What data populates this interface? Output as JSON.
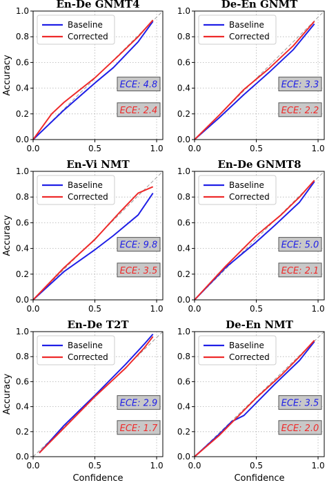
{
  "figure": {
    "xlabel": "Confidence",
    "ylabel": "Accuracy",
    "xticks": [
      "0.0",
      "0.5",
      "1.0"
    ],
    "yticks": [
      "0.0",
      "0.2",
      "0.4",
      "0.6",
      "0.8",
      "1.0"
    ]
  },
  "colors": {
    "baseline": "#1f1fe6",
    "corrected": "#ee2a2a",
    "diagonal": "#999999",
    "ece_box": "#c8c8c8"
  },
  "chart_data": [
    {
      "type": "line",
      "title": "En-De GNMT4",
      "xlabel": "",
      "ylabel": "Accuracy",
      "xlim": [
        0,
        1.05
      ],
      "ylim": [
        0,
        1.0
      ],
      "grid": true,
      "legend_position": "top-left",
      "series": [
        {
          "name": "Baseline",
          "x": [
            0.0,
            0.25,
            0.5,
            0.65,
            0.85,
            0.97
          ],
          "y": [
            0.0,
            0.23,
            0.44,
            0.56,
            0.76,
            0.92
          ]
        },
        {
          "name": "Corrected",
          "x": [
            0.0,
            0.15,
            0.25,
            0.5,
            0.7,
            0.85,
            0.97
          ],
          "y": [
            0.0,
            0.2,
            0.29,
            0.48,
            0.66,
            0.8,
            0.93
          ]
        }
      ],
      "ece": [
        {
          "label": "ECE: 4.8",
          "series": "Baseline"
        },
        {
          "label": "ECE: 2.4",
          "series": "Corrected"
        }
      ]
    },
    {
      "type": "line",
      "title": "De-En GNMT",
      "xlabel": "",
      "ylabel": "",
      "xlim": [
        0,
        1.05
      ],
      "ylim": [
        0,
        1.0
      ],
      "grid": true,
      "legend_position": "top-left",
      "series": [
        {
          "name": "Baseline",
          "x": [
            0.0,
            0.2,
            0.4,
            0.6,
            0.8,
            0.97
          ],
          "y": [
            0.0,
            0.17,
            0.35,
            0.52,
            0.7,
            0.9
          ]
        },
        {
          "name": "Corrected",
          "x": [
            0.0,
            0.2,
            0.4,
            0.6,
            0.8,
            0.97
          ],
          "y": [
            0.0,
            0.19,
            0.39,
            0.55,
            0.73,
            0.92
          ]
        }
      ],
      "ece": [
        {
          "label": "ECE: 3.3",
          "series": "Baseline"
        },
        {
          "label": "ECE: 2.2",
          "series": "Corrected"
        }
      ]
    },
    {
      "type": "line",
      "title": "En-Vi NMT",
      "xlabel": "",
      "ylabel": "Accuracy",
      "xlim": [
        0,
        1.05
      ],
      "ylim": [
        0,
        1.0
      ],
      "grid": true,
      "legend_position": "top-left",
      "series": [
        {
          "name": "Baseline",
          "x": [
            0.0,
            0.25,
            0.5,
            0.65,
            0.85,
            0.97
          ],
          "y": [
            0.0,
            0.22,
            0.39,
            0.5,
            0.66,
            0.83
          ]
        },
        {
          "name": "Corrected",
          "x": [
            0.0,
            0.25,
            0.5,
            0.7,
            0.85,
            0.97
          ],
          "y": [
            0.0,
            0.25,
            0.47,
            0.68,
            0.83,
            0.88
          ]
        }
      ],
      "ece": [
        {
          "label": "ECE: 9.8",
          "series": "Baseline"
        },
        {
          "label": "ECE: 3.5",
          "series": "Corrected"
        }
      ]
    },
    {
      "type": "line",
      "title": "En-De GNMT8",
      "xlabel": "",
      "ylabel": "",
      "xlim": [
        0,
        1.05
      ],
      "ylim": [
        0,
        1.0
      ],
      "grid": true,
      "legend_position": "top-left",
      "series": [
        {
          "name": "Baseline",
          "x": [
            0.0,
            0.25,
            0.5,
            0.65,
            0.85,
            0.97
          ],
          "y": [
            0.0,
            0.25,
            0.45,
            0.58,
            0.76,
            0.92
          ]
        },
        {
          "name": "Corrected",
          "x": [
            0.0,
            0.25,
            0.5,
            0.7,
            0.85,
            0.97
          ],
          "y": [
            0.0,
            0.26,
            0.5,
            0.66,
            0.8,
            0.93
          ]
        }
      ],
      "ece": [
        {
          "label": "ECE: 5.0",
          "series": "Baseline"
        },
        {
          "label": "ECE: 2.1",
          "series": "Corrected"
        }
      ]
    },
    {
      "type": "line",
      "title": "En-De T2T",
      "xlabel": "Confidence",
      "ylabel": "Accuracy",
      "xlim": [
        0,
        1.05
      ],
      "ylim": [
        0,
        1.0
      ],
      "grid": true,
      "legend_position": "top-left",
      "series": [
        {
          "name": "Baseline",
          "x": [
            0.05,
            0.25,
            0.5,
            0.75,
            0.9,
            0.97
          ],
          "y": [
            0.03,
            0.25,
            0.49,
            0.74,
            0.9,
            0.98
          ]
        },
        {
          "name": "Corrected",
          "x": [
            0.05,
            0.25,
            0.5,
            0.75,
            0.9,
            0.97
          ],
          "y": [
            0.03,
            0.23,
            0.48,
            0.71,
            0.87,
            0.96
          ]
        }
      ],
      "ece": [
        {
          "label": "ECE: 2.9",
          "series": "Baseline"
        },
        {
          "label": "ECE: 1.7",
          "series": "Corrected"
        }
      ]
    },
    {
      "type": "line",
      "title": "De-En NMT",
      "xlabel": "Confidence",
      "ylabel": "",
      "xlim": [
        0,
        1.05
      ],
      "ylim": [
        0,
        1.0
      ],
      "grid": true,
      "legend_position": "top-left",
      "series": [
        {
          "name": "Baseline",
          "x": [
            0.0,
            0.2,
            0.3,
            0.4,
            0.5,
            0.65,
            0.85,
            0.97
          ],
          "y": [
            0.0,
            0.18,
            0.28,
            0.33,
            0.43,
            0.58,
            0.77,
            0.92
          ]
        },
        {
          "name": "Corrected",
          "x": [
            0.0,
            0.2,
            0.3,
            0.5,
            0.7,
            0.85,
            0.97
          ],
          "y": [
            0.0,
            0.17,
            0.27,
            0.47,
            0.65,
            0.8,
            0.93
          ]
        }
      ],
      "ece": [
        {
          "label": "ECE: 3.5",
          "series": "Baseline"
        },
        {
          "label": "ECE: 2.0",
          "series": "Corrected"
        }
      ]
    }
  ]
}
